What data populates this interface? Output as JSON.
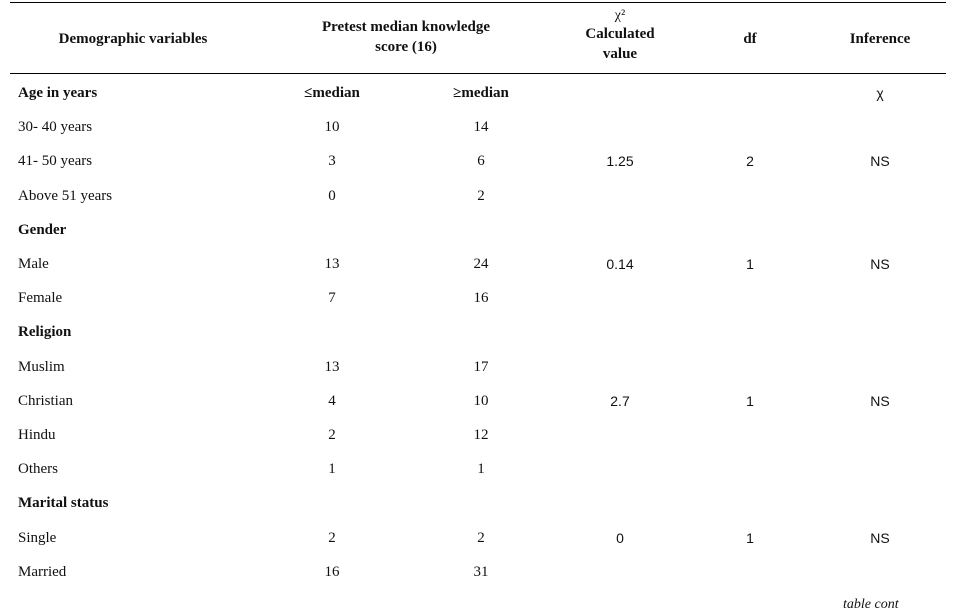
{
  "header": {
    "col_demographic": "Demographic variables",
    "col_pretest_line1": "Pretest median knowledge",
    "col_pretest_line2": "score (16)",
    "col_chi_symbol": "χ²",
    "col_chi_line1": "Calculated",
    "col_chi_line2": "value",
    "col_df": "df",
    "col_inference": "Inference"
  },
  "rows": [
    {
      "label": "Age in years",
      "le": "≤median",
      "ge": "≥median",
      "chi": "",
      "df": "",
      "inf": "χ",
      "is_group": true
    },
    {
      "label": "30- 40 years",
      "le": "10",
      "ge": "14",
      "chi": "",
      "df": "",
      "inf": ""
    },
    {
      "label": "41- 50 years",
      "le": "3",
      "ge": "6",
      "chi": "1.25",
      "df": "2",
      "inf": "NS"
    },
    {
      "label": "Above 51 years",
      "le": "0",
      "ge": "2",
      "chi": "",
      "df": "",
      "inf": ""
    },
    {
      "label": "Gender",
      "le": "",
      "ge": "",
      "chi": "",
      "df": "",
      "inf": "",
      "is_group": true
    },
    {
      "label": "Male",
      "le": "13",
      "ge": "24",
      "chi": "0.14",
      "df": "1",
      "inf": "NS"
    },
    {
      "label": "Female",
      "le": "7",
      "ge": "16",
      "chi": "",
      "df": "",
      "inf": ""
    },
    {
      "label": "Religion",
      "le": "",
      "ge": "",
      "chi": "",
      "df": "",
      "inf": "",
      "is_group": true
    },
    {
      "label": "Muslim",
      "le": "13",
      "ge": "17",
      "chi": "",
      "df": "",
      "inf": ""
    },
    {
      "label": "Christian",
      "le": "4",
      "ge": "10",
      "chi": "2.7",
      "df": "1",
      "inf": "NS"
    },
    {
      "label": "Hindu",
      "le": "2",
      "ge": "12",
      "chi": "",
      "df": "",
      "inf": ""
    },
    {
      "label": "Others",
      "le": "1",
      "ge": "1",
      "chi": "",
      "df": "",
      "inf": ""
    },
    {
      "label": "Marital status",
      "le": "",
      "ge": "",
      "chi": "",
      "df": "",
      "inf": "",
      "is_group": true
    },
    {
      "label": "Single",
      "le": "2",
      "ge": "2",
      "chi": "0",
      "df": "1",
      "inf": "NS"
    },
    {
      "label": "Married",
      "le": "16",
      "ge": "31",
      "chi": "",
      "df": "",
      "inf": ""
    }
  ],
  "footer": {
    "note": "table cont"
  }
}
